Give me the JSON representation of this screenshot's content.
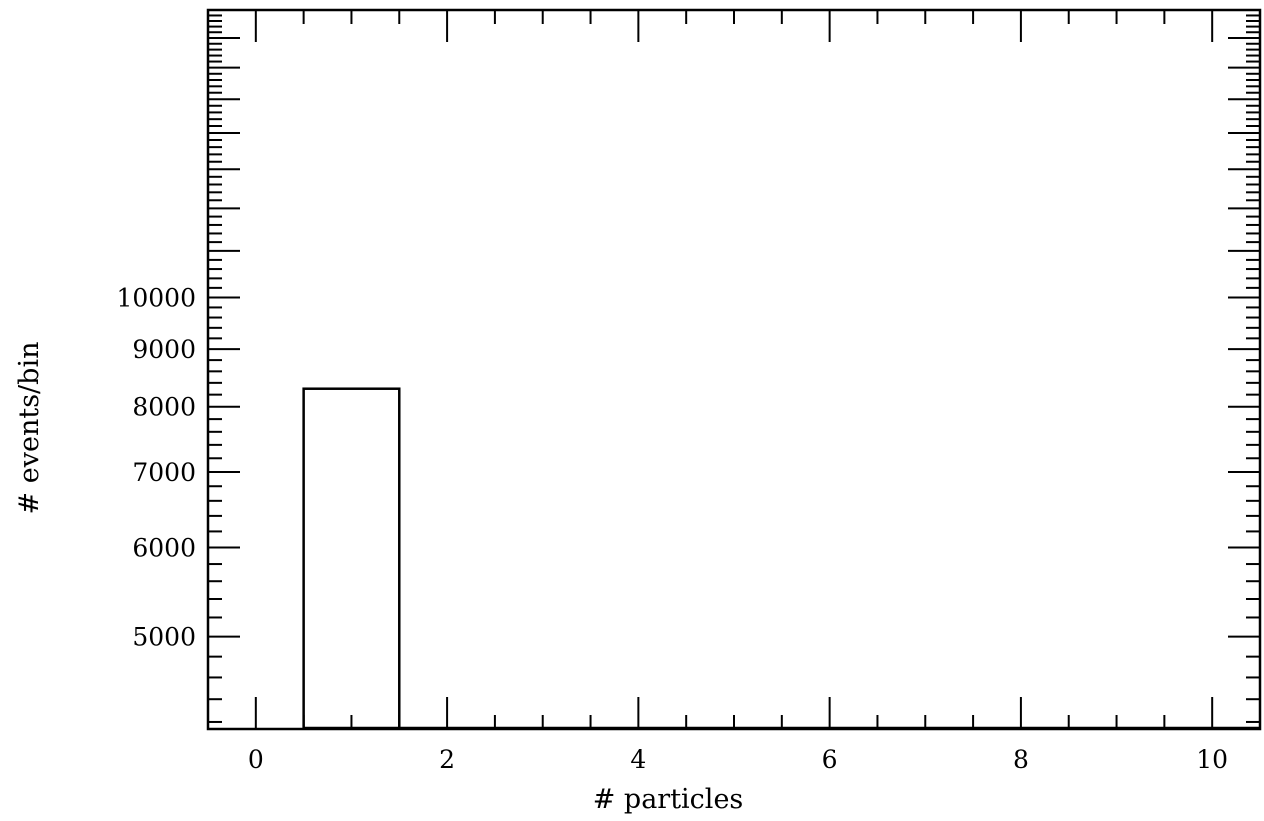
{
  "chart_data": {
    "type": "bar",
    "title": "",
    "xlabel": "# particles",
    "ylabel": "# events/bin",
    "x_scale": "linear",
    "y_scale": "log",
    "xlim": [
      -0.5,
      10.5
    ],
    "ylim": [
      4140,
      18000
    ],
    "grid": false,
    "legend": "none",
    "bin_width": 1,
    "bins": [
      {
        "x": 0,
        "value": 0
      },
      {
        "x": 1,
        "value": 8300
      },
      {
        "x": 2,
        "value": 0
      },
      {
        "x": 3,
        "value": 0
      },
      {
        "x": 4,
        "value": 0
      },
      {
        "x": 5,
        "value": 0
      },
      {
        "x": 6,
        "value": 0
      },
      {
        "x": 7,
        "value": 0
      },
      {
        "x": 8,
        "value": 0
      },
      {
        "x": 9,
        "value": 0
      },
      {
        "x": 10,
        "value": 0
      }
    ],
    "x_ticks_labeled": [
      {
        "value": 0,
        "label": "0"
      },
      {
        "value": 2,
        "label": "2"
      },
      {
        "value": 4,
        "label": "4"
      },
      {
        "value": 6,
        "label": "6"
      },
      {
        "value": 8,
        "label": "8"
      },
      {
        "value": 10,
        "label": "10"
      }
    ],
    "y_ticks_labeled": [
      {
        "value": 5000,
        "label": "5000"
      },
      {
        "value": 6000,
        "label": "6000"
      },
      {
        "value": 7000,
        "label": "7000"
      },
      {
        "value": 8000,
        "label": "8000"
      },
      {
        "value": 9000,
        "label": "9000"
      },
      {
        "value": 10000,
        "label": "10000"
      }
    ]
  }
}
